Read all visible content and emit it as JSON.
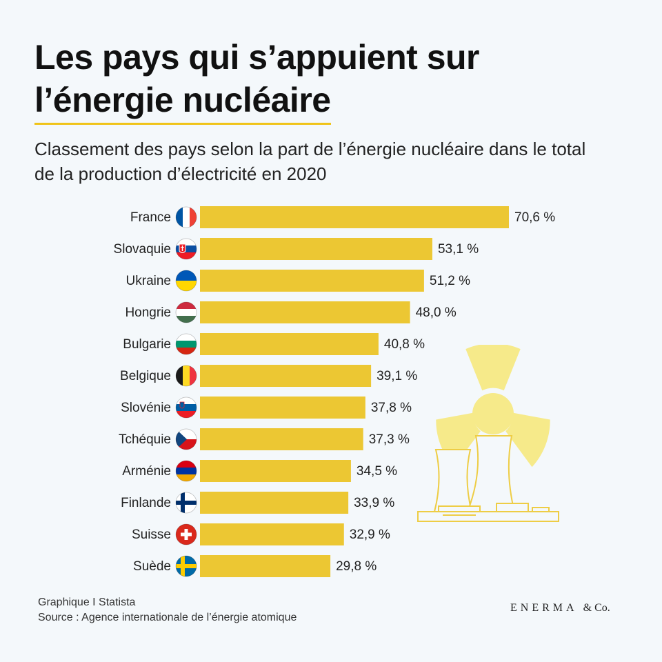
{
  "header": {
    "title_line1": "Les pays qui s’appuient sur",
    "title_line2": "l’énergie nucléaire",
    "subtitle": "Classement des pays selon la part de l’énergie nucléaire dans le total de la production d’électricité en 2020"
  },
  "chart_data": {
    "type": "bar",
    "orientation": "horizontal",
    "title": "Les pays qui s’appuient sur l’énergie nucléaire",
    "subtitle": "Classement des pays selon la part de l’énergie nucléaire dans le total de la production d’électricité en 2020",
    "xlabel": "",
    "ylabel": "",
    "xlim": [
      0,
      100
    ],
    "grid": false,
    "unit": "%",
    "categories": [
      "France",
      "Slovaquie",
      "Ukraine",
      "Hongrie",
      "Bulgarie",
      "Belgique",
      "Slovénie",
      "Tchéquie",
      "Arménie",
      "Finlande",
      "Suisse",
      "Suède"
    ],
    "values": [
      70.6,
      53.1,
      51.2,
      48.0,
      40.8,
      39.1,
      37.8,
      37.3,
      34.5,
      33.9,
      32.9,
      29.8
    ],
    "value_labels": [
      "70,6 %",
      "53,1 %",
      "51,2 %",
      "48,0 %",
      "40,8 %",
      "39,1 %",
      "37,8 %",
      "37,3 %",
      "34,5 %",
      "33,9 %",
      "32,9 %",
      "29,8 %"
    ],
    "flags": [
      "france-flag",
      "slovakia-flag",
      "ukraine-flag",
      "hungary-flag",
      "bulgaria-flag",
      "belgium-flag",
      "slovenia-flag",
      "czechia-flag",
      "armenia-flag",
      "finland-flag",
      "switzerland-flag",
      "sweden-flag"
    ]
  },
  "footer": {
    "credit": "Graphique I Statista",
    "source": "Source : Agence internationale de l’énergie atomique"
  },
  "brand": {
    "name": "ENERMA",
    "suffix": "& Co."
  },
  "colors": {
    "bar": "#ecc733",
    "title_underline": "#f0c419",
    "background": "#f4f8fb",
    "illustration_fill": "#f6ea8a",
    "illustration_stroke": "#eecd45"
  },
  "illustration": {
    "icons": [
      "radiation-symbol-icon",
      "cooling-tower-icon"
    ]
  }
}
